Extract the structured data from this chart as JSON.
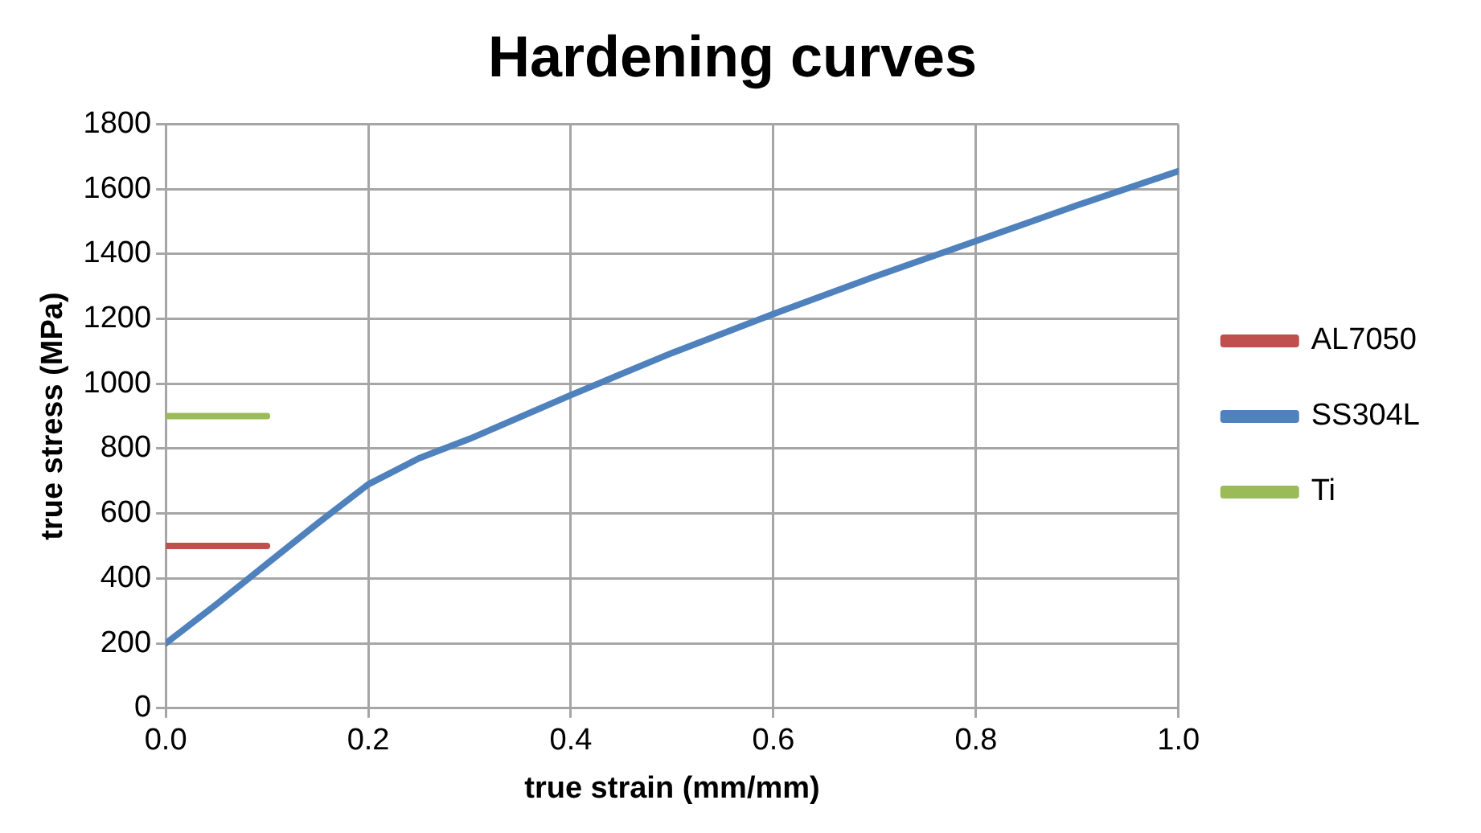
{
  "chart_data": {
    "type": "line",
    "title": "Hardening curves",
    "xlabel": "true strain (mm/mm)",
    "ylabel": "true stress (MPa)",
    "xlim": [
      0,
      1
    ],
    "xticks": [
      {
        "value": 0,
        "label": "0.0"
      },
      {
        "value": 0.2,
        "label": "0.2"
      },
      {
        "value": 0.4,
        "label": "0.4"
      },
      {
        "value": 0.6,
        "label": "0.6"
      },
      {
        "value": 0.8,
        "label": "0.8"
      },
      {
        "value": 1,
        "label": "1.0"
      }
    ],
    "ylim": [
      0,
      1800
    ],
    "yticks": [
      0,
      200,
      400,
      600,
      800,
      1000,
      1200,
      1400,
      1600,
      1800
    ],
    "grid": true,
    "legend": "right",
    "marker": "none",
    "line_style": "solid",
    "series": [
      {
        "name": "AL7050",
        "color": "#c0504d",
        "x": [
          0,
          0.1
        ],
        "values": [
          500,
          500
        ]
      },
      {
        "name": "SS304L",
        "color": "#4f81bd",
        "x": [
          0,
          0.05,
          0.1,
          0.15,
          0.2,
          0.25,
          0.3,
          0.4,
          0.5,
          0.6,
          0.7,
          0.8,
          0.9,
          1.0
        ],
        "values": [
          200,
          320,
          445,
          570,
          690,
          770,
          830,
          965,
          1095,
          1215,
          1330,
          1440,
          1550,
          1655
        ]
      },
      {
        "name": "Ti",
        "color": "#9bbb59",
        "x": [
          0,
          0.1
        ],
        "values": [
          900,
          900
        ]
      }
    ]
  }
}
